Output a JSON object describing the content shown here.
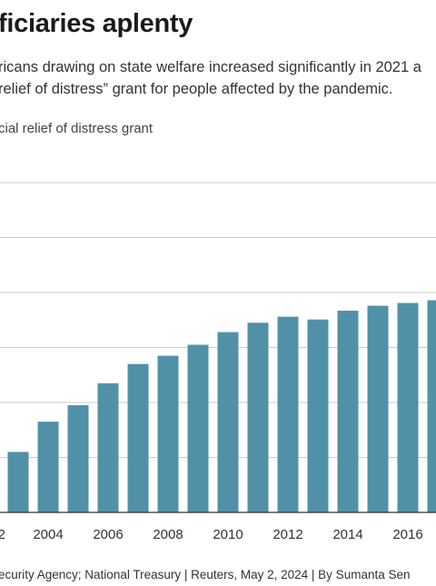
{
  "title": "ficiaries aplenty",
  "subtitle": {
    "line1": "ricans drawing on state welfare increased significantly in 2021 a",
    "line2": " relief of distress” grant for people affected by the pandemic."
  },
  "series_label": "cial relief of distress grant",
  "footer": "ecurity Agency; National Treasury | Reuters, May 2, 2024 | By Sumanta Sen",
  "colors": {
    "bar": "#5191a8",
    "grid": "#cccccc",
    "baseline": "#333333",
    "text": "#333333"
  },
  "chart_data": {
    "type": "bar",
    "x": [
      2003,
      2004,
      2005,
      2006,
      2007,
      2008,
      2009,
      2010,
      2011,
      2012,
      2013,
      2014,
      2015,
      2016,
      2017
    ],
    "values": [
      1.1,
      1.65,
      1.95,
      2.35,
      2.7,
      2.85,
      3.05,
      3.28,
      3.45,
      3.56,
      3.51,
      3.67,
      3.76,
      3.81,
      3.86
    ],
    "xticks": [
      "2",
      "2004",
      "2006",
      "2008",
      "2010",
      "2012",
      "2014",
      "2016"
    ],
    "ylim": [
      0,
      6
    ],
    "grid": true
  }
}
